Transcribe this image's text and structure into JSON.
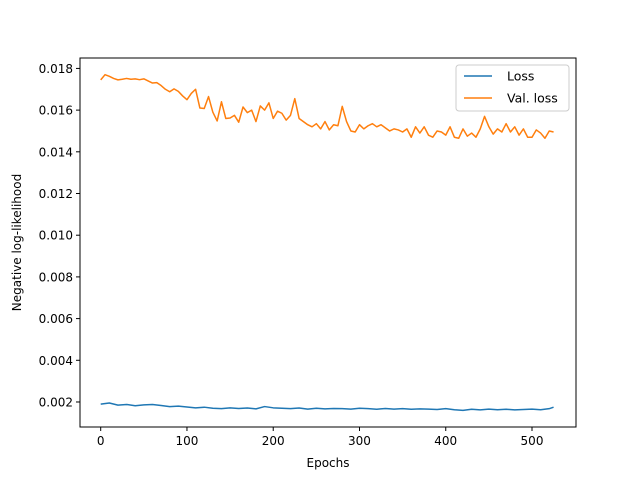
{
  "chart_data": {
    "type": "line",
    "xlabel": "Epochs",
    "ylabel": "Negative log-likelihood",
    "xlim": [
      -24,
      551
    ],
    "ylim": [
      0.0008,
      0.0185
    ],
    "xticks": [
      0,
      100,
      200,
      300,
      400,
      500
    ],
    "xtick_labels": [
      "0",
      "100",
      "200",
      "300",
      "400",
      "500"
    ],
    "yticks": [
      0.002,
      0.004,
      0.006,
      0.008,
      0.01,
      0.012,
      0.014,
      0.016,
      0.018
    ],
    "ytick_labels": [
      "0.002",
      "0.004",
      "0.006",
      "0.008",
      "0.010",
      "0.012",
      "0.014",
      "0.016",
      "0.018"
    ],
    "grid": false,
    "legend_position": "top-right",
    "series": [
      {
        "name": "Loss",
        "color": "#1f77b4",
        "x": [
          0,
          10,
          20,
          30,
          40,
          50,
          60,
          70,
          80,
          90,
          100,
          110,
          120,
          130,
          140,
          150,
          160,
          170,
          180,
          190,
          200,
          210,
          220,
          230,
          240,
          250,
          260,
          270,
          280,
          290,
          300,
          310,
          320,
          330,
          340,
          350,
          360,
          370,
          380,
          390,
          400,
          410,
          420,
          430,
          440,
          450,
          460,
          470,
          480,
          490,
          500,
          510,
          520,
          525
        ],
        "y": [
          0.0019,
          0.00195,
          0.00185,
          0.00188,
          0.00182,
          0.00186,
          0.00188,
          0.00183,
          0.00178,
          0.0018,
          0.00176,
          0.00172,
          0.00175,
          0.0017,
          0.00168,
          0.00172,
          0.00169,
          0.00171,
          0.00167,
          0.00178,
          0.00172,
          0.0017,
          0.00168,
          0.00171,
          0.00166,
          0.0017,
          0.00167,
          0.00169,
          0.00168,
          0.00166,
          0.0017,
          0.00168,
          0.00165,
          0.00169,
          0.00166,
          0.00168,
          0.00165,
          0.00167,
          0.00166,
          0.00164,
          0.00168,
          0.00163,
          0.0016,
          0.00165,
          0.00162,
          0.00166,
          0.00163,
          0.00165,
          0.00162,
          0.00164,
          0.00166,
          0.00163,
          0.00168,
          0.00175
        ]
      },
      {
        "name": "Val. loss",
        "color": "#ff7f0e",
        "x": [
          0,
          5,
          10,
          15,
          20,
          25,
          30,
          35,
          40,
          45,
          50,
          55,
          60,
          65,
          70,
          75,
          80,
          85,
          90,
          95,
          100,
          105,
          110,
          115,
          120,
          125,
          130,
          135,
          140,
          145,
          150,
          155,
          160,
          165,
          170,
          175,
          180,
          185,
          190,
          195,
          200,
          205,
          210,
          215,
          220,
          225,
          230,
          235,
          240,
          245,
          250,
          255,
          260,
          265,
          270,
          275,
          280,
          285,
          290,
          295,
          300,
          305,
          310,
          315,
          320,
          325,
          330,
          335,
          340,
          345,
          350,
          355,
          360,
          365,
          370,
          375,
          380,
          385,
          390,
          395,
          400,
          405,
          410,
          415,
          420,
          425,
          430,
          435,
          440,
          445,
          450,
          455,
          460,
          465,
          470,
          475,
          480,
          485,
          490,
          495,
          500,
          505,
          510,
          515,
          520,
          525
        ],
        "y": [
          0.01745,
          0.0177,
          0.01762,
          0.01752,
          0.01745,
          0.01748,
          0.01752,
          0.01748,
          0.0175,
          0.01746,
          0.0175,
          0.0174,
          0.0173,
          0.01732,
          0.01718,
          0.017,
          0.01688,
          0.01702,
          0.0169,
          0.01668,
          0.0165,
          0.0168,
          0.017,
          0.0161,
          0.01608,
          0.01665,
          0.0159,
          0.01548,
          0.0164,
          0.0156,
          0.01562,
          0.01575,
          0.01542,
          0.01615,
          0.01588,
          0.016,
          0.01545,
          0.0162,
          0.016,
          0.01635,
          0.0156,
          0.01595,
          0.01585,
          0.01552,
          0.01575,
          0.01655,
          0.0156,
          0.01545,
          0.0153,
          0.0152,
          0.01535,
          0.0151,
          0.01545,
          0.01505,
          0.0153,
          0.01525,
          0.01618,
          0.01545,
          0.015,
          0.01495,
          0.0153,
          0.0151,
          0.01525,
          0.01535,
          0.0152,
          0.0153,
          0.01515,
          0.015,
          0.0151,
          0.01505,
          0.01495,
          0.0151,
          0.0147,
          0.0152,
          0.0149,
          0.0152,
          0.0148,
          0.0147,
          0.015,
          0.01495,
          0.0148,
          0.0152,
          0.0147,
          0.01465,
          0.0151,
          0.01475,
          0.0149,
          0.0147,
          0.0151,
          0.0157,
          0.0152,
          0.01485,
          0.0151,
          0.01495,
          0.01535,
          0.01495,
          0.0152,
          0.0148,
          0.0151,
          0.0147,
          0.0147,
          0.01505,
          0.0149,
          0.01465,
          0.015,
          0.01495
        ]
      }
    ]
  }
}
